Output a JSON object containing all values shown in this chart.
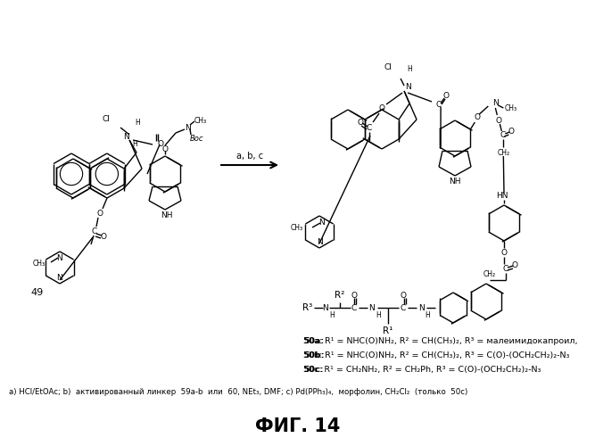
{
  "title": "ФИГ. 14",
  "background_color": "#ffffff",
  "footnote": "a) HCl/EtOAc; b)  активированный линкер  59a-b  или  60, NEt₃, DMF; c) Pd(PPh₃)₄,  морфолин, CH₂Cl₂  (только  50c)",
  "label_50a": "50a: R¹ = NHC(O)NH₂, R² = CH(CH₃)₂, R³ = малеимидокапроил,",
  "label_50b": "50b: R¹ = NHC(O)NH₂, R² = CH(CH₃)₂, R³ = C(O)-(OCH₂CH₂)₂-N₃",
  "label_50c": "50c: R¹ = CH₂NH₂, R² = CH₂Ph, R³ = C(O)-(OCH₂CH₂)₂-N₃",
  "figsize": [
    6.67,
    5.0
  ],
  "dpi": 100
}
